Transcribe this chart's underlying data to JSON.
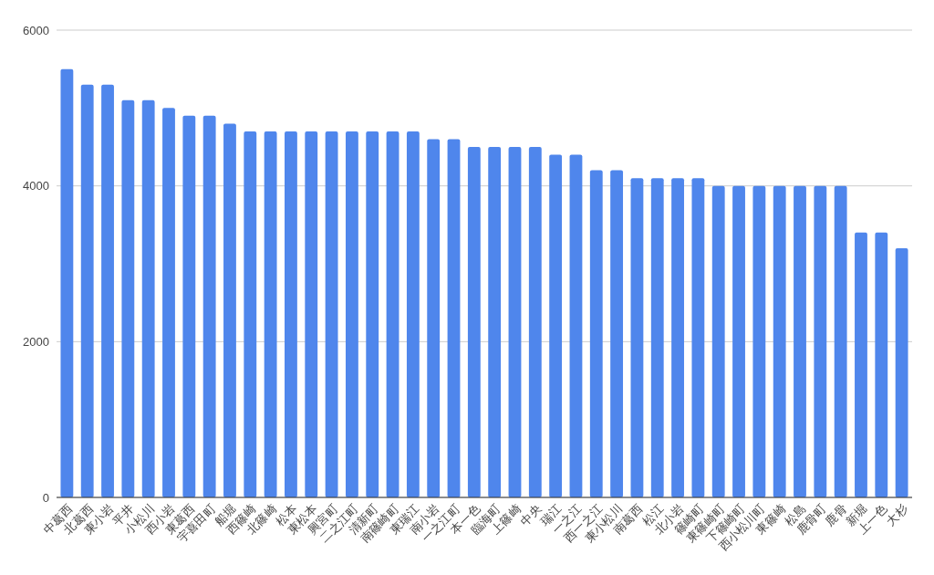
{
  "chart_data": {
    "type": "bar",
    "categories": [
      "中葛西",
      "北葛西",
      "東小岩",
      "平井",
      "小松川",
      "西小岩",
      "東葛西",
      "宇喜田町",
      "船堀",
      "西篠崎",
      "北篠崎",
      "松本",
      "東松本",
      "興宮町",
      "二之江町",
      "清新町",
      "南篠崎町",
      "東瑞江",
      "南小岩",
      "一之江町",
      "本一色",
      "臨海町",
      "上篠崎",
      "中央",
      "瑞江",
      "一之江",
      "西一之江",
      "東小松川",
      "南葛西",
      "松江",
      "北小岩",
      "篠崎町",
      "東篠崎町",
      "下篠崎町",
      "西小松川町",
      "東篠崎",
      "松島",
      "鹿骨町",
      "鹿骨",
      "新堀",
      "上一色",
      "大杉"
    ],
    "values": [
      5500,
      5300,
      5300,
      5100,
      5100,
      5000,
      4900,
      4900,
      4800,
      4700,
      4700,
      4700,
      4700,
      4700,
      4700,
      4700,
      4700,
      4700,
      4600,
      4600,
      4500,
      4500,
      4500,
      4500,
      4400,
      4400,
      4200,
      4200,
      4100,
      4100,
      4100,
      4100,
      4000,
      4000,
      4000,
      4000,
      4000,
      4000,
      4000,
      3400,
      3400,
      3200
    ],
    "color": "#4f86ec",
    "ylim": [
      0,
      6000
    ],
    "yticks": [
      0,
      2000,
      4000,
      6000
    ],
    "grid": "y"
  }
}
